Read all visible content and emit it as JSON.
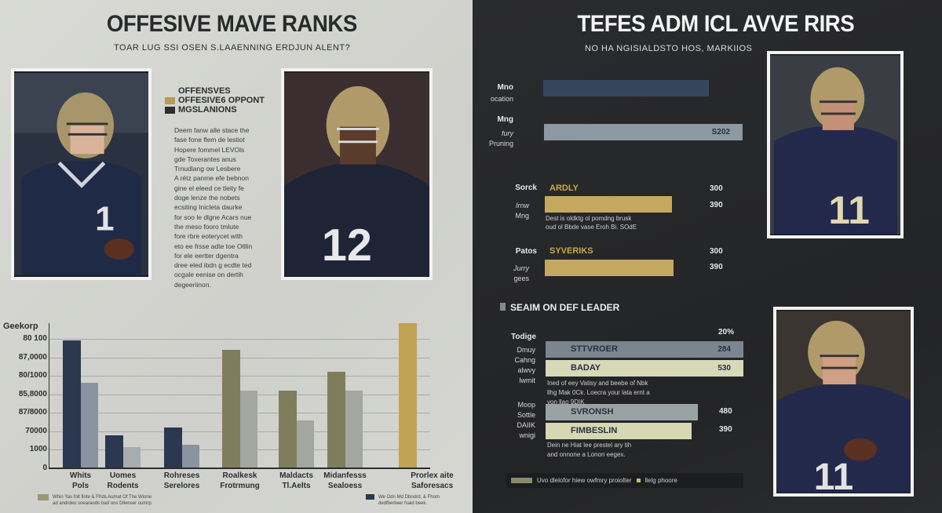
{
  "left": {
    "title": "OFFESIVE MAVE RANKS",
    "subtitle": "TOAR LUG SSI OSEN S.LAAENNING ERDJUN ALENT?",
    "legend": [
      {
        "label": "OFFENSVES",
        "color": ""
      },
      {
        "label": "OFFESIVE6 OPPONT",
        "color": "#b89a55"
      },
      {
        "label": "MGSLANIONS",
        "color": "#2b2f33"
      }
    ],
    "body_text": [
      "Deem fanw alle stace the",
      "fase fone flem de lestiot",
      "Hopere fommel LEVOls",
      "gde  Toxerantes anus",
      "Trnudlang ow Lesbere",
      "A rétz panme efe bebnon",
      "gine el eleed ce tleity fe",
      "doge lenze the nobets",
      "ecsiting Inicleta daurke",
      "for soo le dlgne Acars nue",
      "the meso fooro tmlute",
      "fore rbre eoterycet with",
      "eto ee frsse adte toe Otllin",
      "for ele eertter dgentra",
      "dree eled ibdn g ecdte ted",
      "ocgale eenise on dertih",
      "degeeriinon."
    ],
    "photo_numbers": [
      "1",
      "12"
    ]
  },
  "chart_data": {
    "type": "bar",
    "ylabel": "Geekorp",
    "yticks": [
      "80 100",
      "87,0000",
      "80/1000",
      "85,8000",
      "87/8000",
      "70000",
      "1000",
      "0"
    ],
    "ylim": [
      0,
      8
    ],
    "grid": true,
    "categories": [
      [
        "Whits",
        "Pols"
      ],
      [
        "Uomes",
        "Rodents"
      ],
      [
        "Rohreses",
        "Serelores"
      ],
      [
        "Roalkesk",
        "Frotrmung"
      ],
      [
        "Maldacts",
        "Tl.Aelts"
      ],
      [
        "Midanfesss",
        "Sealoess"
      ],
      [
        "Prorlex aite",
        "Saforesacs"
      ]
    ],
    "series": [
      {
        "values": [
          6.9,
          1.75,
          2.15,
          6.4,
          4.15,
          5.2,
          7.85
        ],
        "colors": [
          "#2b3850",
          "#2b3850",
          "#2b3850",
          "#7f7d5c",
          "#7f7d5c",
          "#7f7d5c",
          "#c2a255"
        ]
      },
      {
        "values": [
          4.6,
          1.1,
          1.25,
          4.15,
          2.55,
          4.15,
          null
        ],
        "colors": [
          "#8994a0",
          "#a7adae",
          "#8994a0",
          "#a3a79f",
          "#a3a79f",
          "#a3a79f",
          ""
        ]
      }
    ],
    "notes": [
      {
        "color": "#9a9870",
        "lines": [
          "Whin Yas fnlt finte & Ffrds Aumat Of The Wione",
          "ad andrdeo soearaodo bad ons Dllenser oumrp."
        ]
      },
      {
        "color": "#2b3850",
        "lines": [
          "We Odn Md Dbratrd, & Fhom",
          "dedfbedwer fsaid beek."
        ]
      }
    ]
  },
  "right": {
    "title": "TEFES ADM  ICL AVVE RIRS",
    "subtitle": "NO HA NGISIALDSTO HOS, MARKIIOS",
    "photo_numbers": [
      "11",
      "11"
    ],
    "top_bars": [
      {
        "labels": [
          "Mno",
          "ocation"
        ],
        "value": "",
        "color": "#34465e",
        "level": 0.72
      },
      {
        "labels": [
          "Mng",
          "fury",
          "Pruning"
        ],
        "value": "S202",
        "color": "#8c98a2",
        "level": 0.86
      }
    ],
    "gold_groups": [
      {
        "label": "Sorck",
        "name": "ARDLY",
        "top_value": "300",
        "value": "390",
        "side": [
          "Irnw",
          "Mng"
        ],
        "level": 0.55,
        "text": [
          "Dest is oldktg ol pomdng brusk",
          "oud ol Bbde vase Eroh Bi. SOdE"
        ]
      },
      {
        "label": "Patos",
        "name": "SYVERIKS",
        "top_value": "300",
        "value": "390",
        "side": [
          "Jurry",
          "gees"
        ],
        "level": 0.56,
        "text": []
      }
    ],
    "section_title": "SEAIM ON DEF LEADER",
    "section": {
      "header_label": "Todige",
      "header_value": "20%",
      "side1": [
        "Dmuy",
        "Cahng",
        "alwvy",
        "lwmit"
      ],
      "bars1": [
        {
          "name": "STTVROER",
          "value": "284",
          "color": "#7a8590",
          "level": 1.0
        },
        {
          "name": "BADAY",
          "value": "530",
          "color": "#d8d9b8",
          "level": 1.0
        }
      ],
      "text1": [
        "Ined of eey Vatisy and beebe of Nbk",
        "llhg Mak 0Ck. Loecra your lata ernt a",
        "von llao 9DIK"
      ],
      "side2": [
        "Moop",
        "Sottle",
        "DAIIK",
        "wnigi"
      ],
      "bars2": [
        {
          "name": "SVRONSH",
          "value": "480",
          "color": "#9aa3a3",
          "level": 0.77
        },
        {
          "name": "FIMBESLIN",
          "value": "390",
          "color": "#d6d8b4",
          "level": 0.74
        }
      ],
      "text2": [
        "Dein ne Hiat lee prestel ary tih",
        "and onnone a Lonon eegex."
      ]
    },
    "legend": {
      "swatch": "#8a8a6a",
      "text": "Uvo dlelofor hiew owfmry proiolter",
      "text2": "llelg phoore",
      "dot": "#c7b96c"
    }
  }
}
